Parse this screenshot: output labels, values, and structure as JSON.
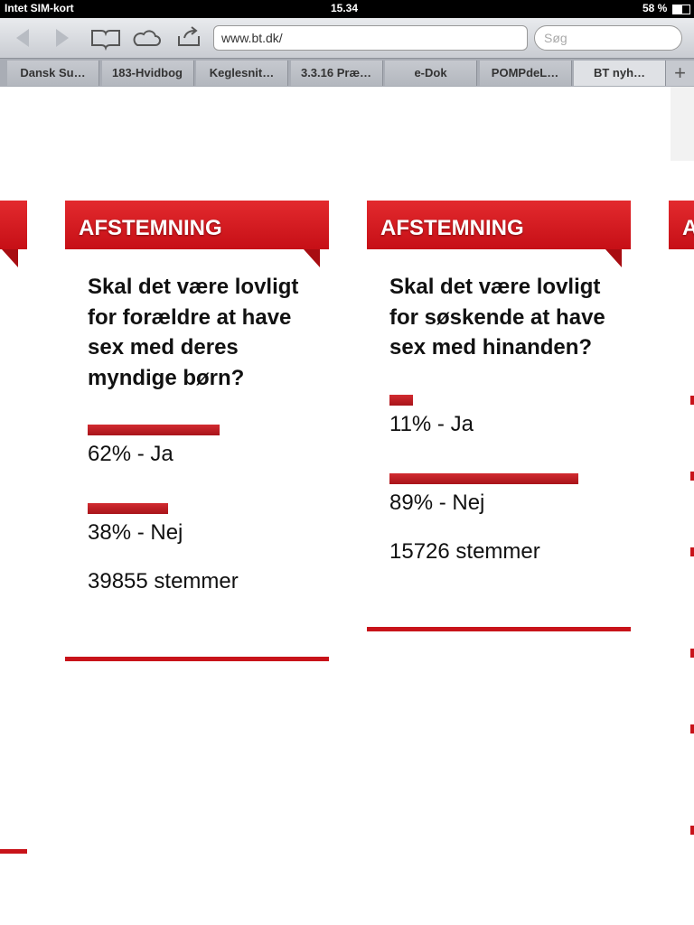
{
  "status_bar": {
    "carrier": "Intet SIM-kort",
    "time": "15.34",
    "battery": "58 %"
  },
  "toolbar": {
    "url": "www.bt.dk/",
    "search_placeholder": "Søg"
  },
  "tabs": [
    "Dansk Su…",
    "183-Hvidbog",
    "Keglesnit…",
    "3.3.16 Præ…",
    "e-Dok",
    "POMPdeL…",
    "BT nyh…"
  ],
  "polls": [
    {
      "header": "AFSTEMNING",
      "question": "Skal det være lovligt for forældre at have sex med deres myndige børn?",
      "options": [
        {
          "value": 62,
          "label": "62% - Ja"
        },
        {
          "value": 38,
          "label": "38% - Nej"
        }
      ],
      "votes": "39855 stemmer"
    },
    {
      "header": "AFSTEMNING",
      "question": "Skal det være lovligt for søskende at have sex med hinanden?",
      "options": [
        {
          "value": 11,
          "label": "11% - Ja"
        },
        {
          "value": 89,
          "label": "89% - Nej"
        }
      ],
      "votes": "15726 stemmer"
    }
  ]
}
